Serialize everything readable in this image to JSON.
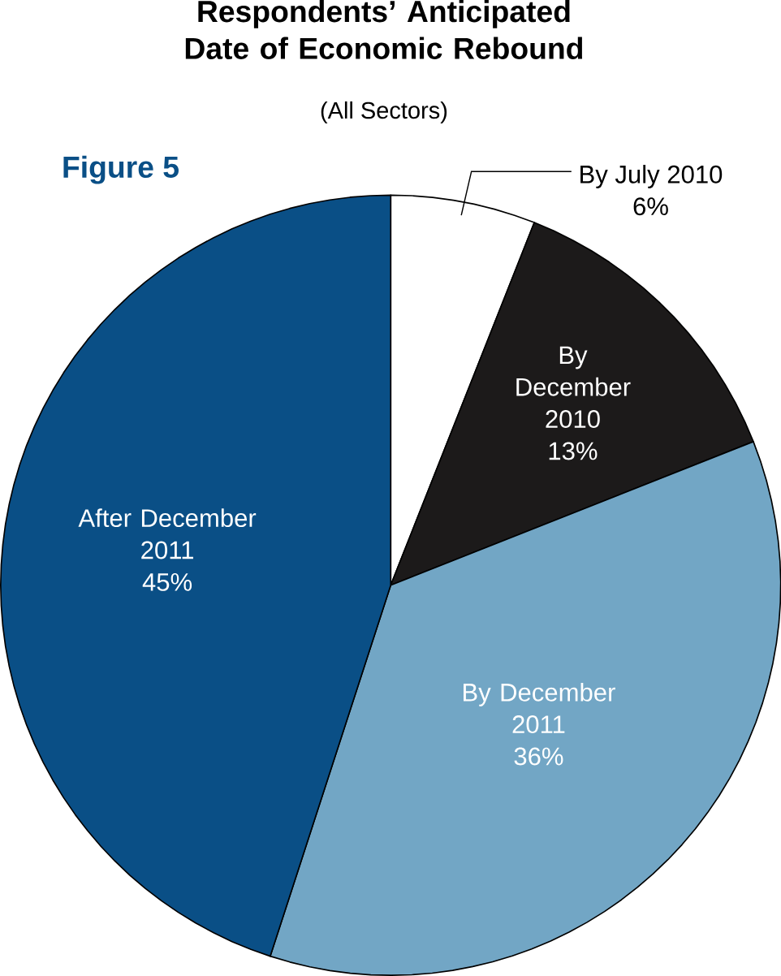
{
  "chart_data": {
    "type": "pie",
    "title": "Respondents’ Anticipated Date of Economic Rebound",
    "subtitle": "(All Sectors)",
    "annotations": [
      "Figure 5"
    ],
    "categories": [
      "By July 2010",
      "By December 2010",
      "By December 2011",
      "After December 2011"
    ],
    "values": [
      6,
      13,
      36,
      45
    ],
    "value_labels": [
      "6%",
      "13%",
      "36%",
      "45%"
    ],
    "colors": [
      "#ffffff",
      "#1c1a1a",
      "#72a6c5",
      "#0a4f86"
    ]
  }
}
